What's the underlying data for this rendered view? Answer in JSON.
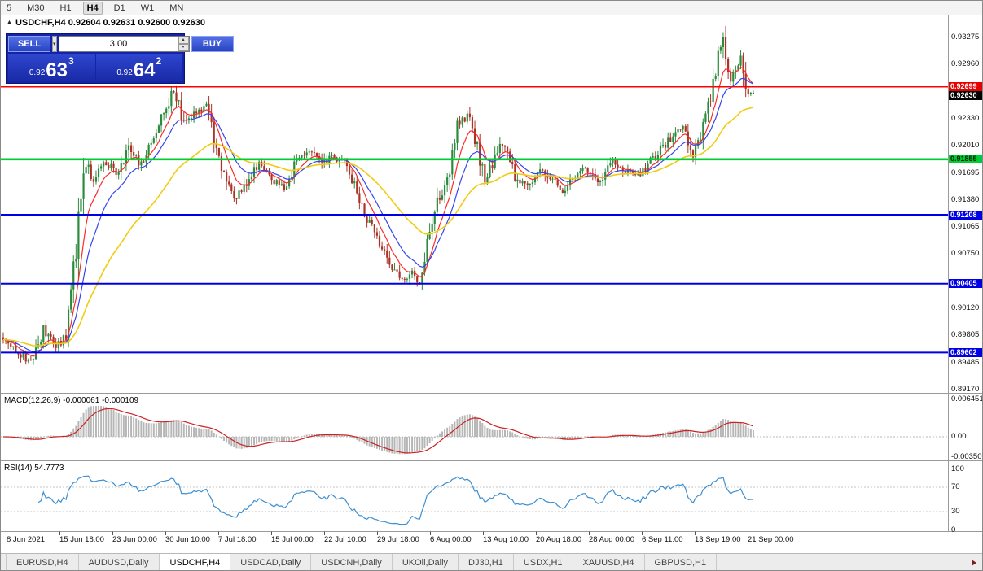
{
  "toolbar": {
    "timeframes": [
      "5",
      "M30",
      "H1",
      "H4",
      "D1",
      "W1",
      "MN"
    ],
    "active": "H4"
  },
  "chart": {
    "title": "USDCHF,H4 0.92604 0.92631 0.92600 0.92630"
  },
  "icons": {
    "panel_toggle": "▲",
    "dropdown": "▾",
    "spin_up": "▴",
    "spin_down": "▾"
  },
  "trade_panel": {
    "sell_label": "SELL",
    "buy_label": "BUY",
    "lot_size": "3.00",
    "sell_price_prefix": "0.92",
    "sell_price_big": "63",
    "sell_price_sup": "3",
    "buy_price_prefix": "0.92",
    "buy_price_big": "64",
    "buy_price_sup": "2"
  },
  "indicators": {
    "macd_label": "MACD(12,26,9) -0.000061 -0.000109",
    "rsi_label": "RSI(14) 54.7773"
  },
  "tabs": {
    "items": [
      "EURUSD,H4",
      "AUDUSD,Daily",
      "USDCHF,H4",
      "USDCAD,Daily",
      "USDCNH,Daily",
      "UKOil,Daily",
      "DJ30,H1",
      "USDX,H1",
      "XAUUSD,H4",
      "GBPUSD,H1"
    ],
    "active_index": 2
  },
  "chart_data": {
    "type": "candlestick",
    "symbol": "USDCHF",
    "timeframe": "H4",
    "current": {
      "open": 0.92604,
      "high": 0.92631,
      "low": 0.926,
      "close": 0.9263,
      "bid": 0.92633,
      "ask": 0.92642
    },
    "price_axis": {
      "min": 0.8917,
      "max": 0.9354,
      "labels": [
        0.93275,
        0.9296,
        0.9233,
        0.9201,
        0.91695,
        0.9138,
        0.91065,
        0.9075,
        0.9012,
        0.89805,
        0.89485,
        0.8917
      ],
      "tags": [
        {
          "price": 0.92699,
          "label": "0.92699",
          "bg": "#e60000",
          "fg": "#ffffff"
        },
        {
          "price": 0.9263,
          "label": "0.92630",
          "bg": "#000000",
          "fg": "#ffffff"
        },
        {
          "price": 0.91855,
          "label": "0.91855",
          "bg": "#00cc33",
          "fg": "#002200"
        },
        {
          "price": 0.91208,
          "label": "0.91208",
          "bg": "#0000e6",
          "fg": "#ffffff"
        },
        {
          "price": 0.90405,
          "label": "0.90405",
          "bg": "#0000e6",
          "fg": "#ffffff"
        },
        {
          "price": 0.89602,
          "label": "0.89602",
          "bg": "#0000e6",
          "fg": "#ffffff"
        }
      ]
    },
    "horizontal_lines": [
      {
        "price": 0.92699,
        "color": "#ff0000",
        "width": 1.4
      },
      {
        "price": 0.91855,
        "color": "#00cc33",
        "width": 2.6
      },
      {
        "price": 0.91208,
        "color": "#0000e6",
        "width": 2
      },
      {
        "price": 0.90405,
        "color": "#0000e6",
        "width": 2
      },
      {
        "price": 0.89602,
        "color": "#0000e6",
        "width": 2
      }
    ],
    "time_labels": [
      "8 Jun 2021",
      "15 Jun 18:00",
      "23 Jun 00:00",
      "30 Jun 10:00",
      "7 Jul 18:00",
      "15 Jul 00:00",
      "22 Jul 10:00",
      "29 Jul 18:00",
      "6 Aug 00:00",
      "13 Aug 10:00",
      "20 Aug 18:00",
      "28 Aug 00:00",
      "6 Sep 11:00",
      "13 Sep 19:00",
      "21 Sep 00:00"
    ],
    "moving_averages": [
      {
        "period": 8,
        "color": "#ff2a2a"
      },
      {
        "period": 16,
        "color": "#3344ee"
      },
      {
        "period": 44,
        "color": "#f0cc11"
      }
    ],
    "candle_colors": {
      "up": "#2c8a3c",
      "down": "#aa3226"
    },
    "macd": {
      "label": "MACD(12,26,9)",
      "value": -6.1e-05,
      "signal_value": -0.000109,
      "axis_labels": [
        {
          "value": 0.006451,
          "label": "0.006451"
        },
        {
          "value": 0,
          "label": "0.00"
        },
        {
          "value": -0.0035,
          "label": "-0.00350"
        }
      ],
      "histogram_color": "#b6b6b6",
      "signal_color": "#cc2222"
    },
    "rsi": {
      "label": "RSI(14)",
      "value": 54.7773,
      "axis_labels": [
        {
          "value": 100,
          "label": "100"
        },
        {
          "value": 70,
          "label": "70"
        },
        {
          "value": 30,
          "label": "30"
        },
        {
          "value": 0,
          "label": "0"
        }
      ],
      "levels": [
        70,
        30
      ],
      "line_color": "#3d8fd1"
    },
    "price_path": [
      [
        0,
        0.8978
      ],
      [
        7,
        0.8962
      ],
      [
        12,
        0.8948
      ],
      [
        17,
        0.8986
      ],
      [
        22,
        0.8966
      ],
      [
        26,
        0.8979
      ],
      [
        30,
        0.908
      ],
      [
        33,
        0.9186
      ],
      [
        37,
        0.916
      ],
      [
        41,
        0.9186
      ],
      [
        46,
        0.9168
      ],
      [
        51,
        0.92
      ],
      [
        56,
        0.9178
      ],
      [
        61,
        0.9212
      ],
      [
        66,
        0.9246
      ],
      [
        69,
        0.9268
      ],
      [
        73,
        0.9224
      ],
      [
        77,
        0.9236
      ],
      [
        82,
        0.9246
      ],
      [
        86,
        0.92
      ],
      [
        90,
        0.9156
      ],
      [
        94,
        0.9138
      ],
      [
        99,
        0.9166
      ],
      [
        103,
        0.918
      ],
      [
        108,
        0.9162
      ],
      [
        113,
        0.915
      ],
      [
        118,
        0.9186
      ],
      [
        123,
        0.9194
      ],
      [
        128,
        0.918
      ],
      [
        133,
        0.919
      ],
      [
        138,
        0.9178
      ],
      [
        143,
        0.914
      ],
      [
        148,
        0.9105
      ],
      [
        152,
        0.9078
      ],
      [
        156,
        0.906
      ],
      [
        161,
        0.9044
      ],
      [
        164,
        0.9052
      ],
      [
        167,
        0.9042
      ],
      [
        170,
        0.909
      ],
      [
        174,
        0.9136
      ],
      [
        178,
        0.9162
      ],
      [
        182,
        0.9222
      ],
      [
        186,
        0.9236
      ],
      [
        190,
        0.92
      ],
      [
        193,
        0.916
      ],
      [
        197,
        0.9186
      ],
      [
        200,
        0.9206
      ],
      [
        205,
        0.9166
      ],
      [
        210,
        0.9154
      ],
      [
        215,
        0.9172
      ],
      [
        220,
        0.916
      ],
      [
        224,
        0.915
      ],
      [
        229,
        0.9166
      ],
      [
        234,
        0.9174
      ],
      [
        239,
        0.916
      ],
      [
        244,
        0.9182
      ],
      [
        249,
        0.9172
      ],
      [
        254,
        0.9166
      ],
      [
        259,
        0.9182
      ],
      [
        264,
        0.92
      ],
      [
        268,
        0.9212
      ],
      [
        272,
        0.9222
      ],
      [
        276,
        0.919
      ],
      [
        279,
        0.9212
      ],
      [
        282,
        0.9246
      ],
      [
        285,
        0.9292
      ],
      [
        288,
        0.9328
      ],
      [
        291,
        0.928
      ],
      [
        293,
        0.9296
      ],
      [
        295,
        0.9302
      ],
      [
        297,
        0.9262
      ],
      [
        299,
        0.9263
      ]
    ]
  }
}
